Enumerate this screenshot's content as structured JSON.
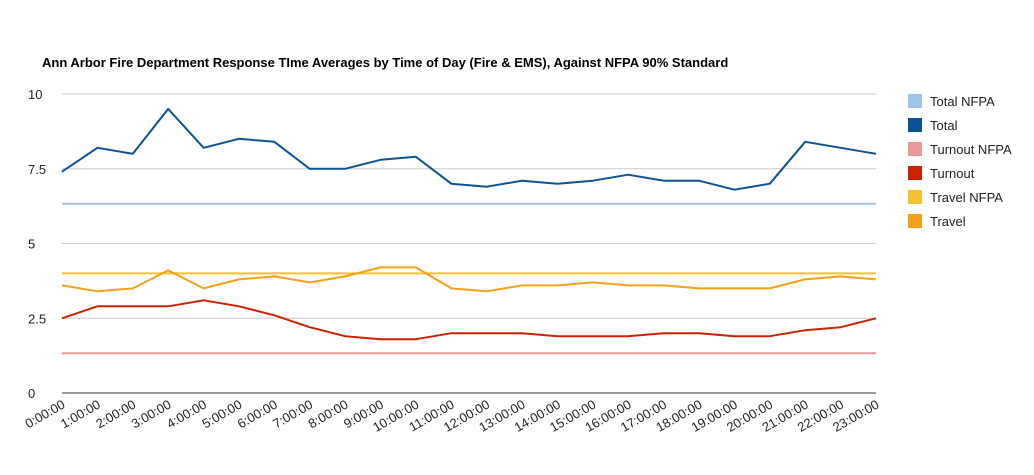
{
  "chart_data": {
    "type": "line",
    "title": "Ann Arbor Fire Department Response TIme Averages by Time of Day (Fire & EMS), Against NFPA 90% Standard",
    "xlabel": "",
    "ylabel": "",
    "ylim": [
      0,
      10
    ],
    "yticks": [
      0,
      2.5,
      5,
      7.5,
      10
    ],
    "ytick_labels": [
      "0",
      "2.5",
      "5",
      "7.5",
      "10"
    ],
    "grid": true,
    "legend_position": "right",
    "categories": [
      "0:00:00",
      "1:00:00",
      "2:00:00",
      "3:00:00",
      "4:00:00",
      "5:00:00",
      "6:00:00",
      "7:00:00",
      "8:00:00",
      "9:00:00",
      "10:00:00",
      "11:00:00",
      "12:00:00",
      "13:00:00",
      "14:00:00",
      "15:00:00",
      "16:00:00",
      "17:00:00",
      "18:00:00",
      "19:00:00",
      "20:00:00",
      "21:00:00",
      "22:00:00",
      "23:00:00"
    ],
    "series": [
      {
        "name": "Total NFPA",
        "color": "#9fc5e8",
        "values": [
          6.33,
          6.33,
          6.33,
          6.33,
          6.33,
          6.33,
          6.33,
          6.33,
          6.33,
          6.33,
          6.33,
          6.33,
          6.33,
          6.33,
          6.33,
          6.33,
          6.33,
          6.33,
          6.33,
          6.33,
          6.33,
          6.33,
          6.33,
          6.33
        ]
      },
      {
        "name": "Total",
        "color": "#0b5394",
        "values": [
          7.4,
          8.2,
          8.0,
          9.5,
          8.2,
          8.5,
          8.4,
          7.5,
          7.5,
          7.8,
          7.9,
          7.0,
          6.9,
          7.1,
          7.0,
          7.1,
          7.3,
          7.1,
          7.1,
          6.8,
          7.0,
          8.4,
          8.2,
          8.0
        ]
      },
      {
        "name": "Turnout NFPA",
        "color": "#ea9999",
        "values": [
          1.33,
          1.33,
          1.33,
          1.33,
          1.33,
          1.33,
          1.33,
          1.33,
          1.33,
          1.33,
          1.33,
          1.33,
          1.33,
          1.33,
          1.33,
          1.33,
          1.33,
          1.33,
          1.33,
          1.33,
          1.33,
          1.33,
          1.33,
          1.33
        ]
      },
      {
        "name": "Turnout",
        "color": "#cc2200",
        "values": [
          2.5,
          2.9,
          2.9,
          2.9,
          3.1,
          2.9,
          2.6,
          2.2,
          1.9,
          1.8,
          1.8,
          2.0,
          2.0,
          2.0,
          1.9,
          1.9,
          1.9,
          2.0,
          2.0,
          1.9,
          1.9,
          2.1,
          2.2,
          2.5
        ]
      },
      {
        "name": "Travel NFPA",
        "color": "#f1c232",
        "values": [
          4.0,
          4.0,
          4.0,
          4.0,
          4.0,
          4.0,
          4.0,
          4.0,
          4.0,
          4.0,
          4.0,
          4.0,
          4.0,
          4.0,
          4.0,
          4.0,
          4.0,
          4.0,
          4.0,
          4.0,
          4.0,
          4.0,
          4.0,
          4.0
        ]
      },
      {
        "name": "Travel",
        "color": "#f6a01a",
        "values": [
          3.6,
          3.4,
          3.5,
          4.1,
          3.5,
          3.8,
          3.9,
          3.7,
          3.9,
          4.2,
          4.2,
          3.5,
          3.4,
          3.6,
          3.6,
          3.7,
          3.6,
          3.6,
          3.5,
          3.5,
          3.5,
          3.8,
          3.9,
          3.8
        ]
      }
    ]
  }
}
